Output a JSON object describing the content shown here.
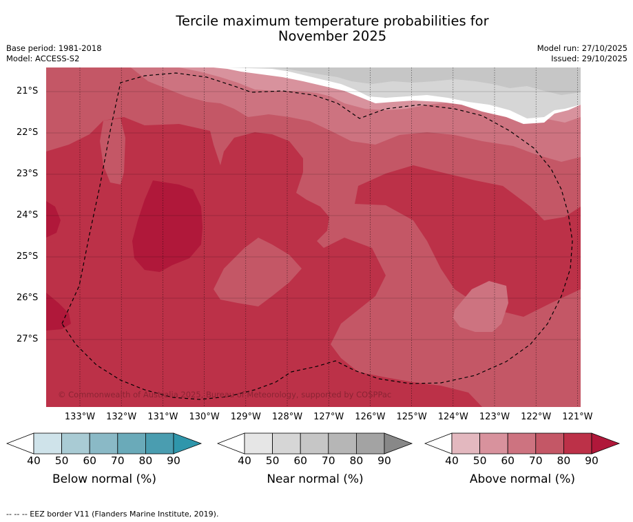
{
  "title_line1": "Tercile maximum temperature probabilities for",
  "title_line2": "November 2025",
  "meta_left": {
    "base_period": "Base period: 1981-2018",
    "model": "Model: ACCESS-S2"
  },
  "meta_right": {
    "model_run": "Model run: 27/10/2025",
    "issued": "Issued: 29/10/2025"
  },
  "map": {
    "lon_labels": [
      "133°W",
      "132°W",
      "131°W",
      "130°W",
      "129°W",
      "128°W",
      "127°W",
      "126°W",
      "125°W",
      "124°W",
      "123°W",
      "122°W",
      "121°W"
    ],
    "lat_labels": [
      "21°S",
      "22°S",
      "23°S",
      "24°S",
      "25°S",
      "26°S",
      "27°S"
    ],
    "copyright": "© Commonwealth of Australia 2025, Bureau of Meteorology, supported by COSPPac"
  },
  "colorbars": [
    {
      "label": "Below normal (%)",
      "ticks": [
        "40",
        "50",
        "60",
        "70",
        "80",
        "90"
      ],
      "colors": [
        "#ffffff",
        "#cfe3ea",
        "#a9cbd4",
        "#8ab9c6",
        "#6aaab9",
        "#4a9db0",
        "#2f96ab"
      ]
    },
    {
      "label": "Near normal (%)",
      "ticks": [
        "40",
        "50",
        "60",
        "70",
        "80",
        "90"
      ],
      "colors": [
        "#ffffff",
        "#e6e6e6",
        "#d6d6d6",
        "#c6c6c6",
        "#b6b6b6",
        "#a3a3a3",
        "#888888"
      ]
    },
    {
      "label": "Above normal (%)",
      "ticks": [
        "40",
        "50",
        "60",
        "70",
        "80",
        "90"
      ],
      "colors": [
        "#ffffff",
        "#e3b8bf",
        "#d8929d",
        "#cd7380",
        "#c45766",
        "#bc3148",
        "#b0183a"
      ]
    }
  ],
  "legend_footer": "--  --  -- EEZ border V11 (Flanders Marine Institute, 2019).",
  "colors": {
    "above_60": "#cd7380",
    "above_70": "#c45766",
    "above_80": "#bc3148",
    "above_90": "#b0183a",
    "near_50": "#e6e6e6",
    "near_60": "#d6d6d6",
    "near_70": "#c6c6c6",
    "grid": "#000000"
  }
}
